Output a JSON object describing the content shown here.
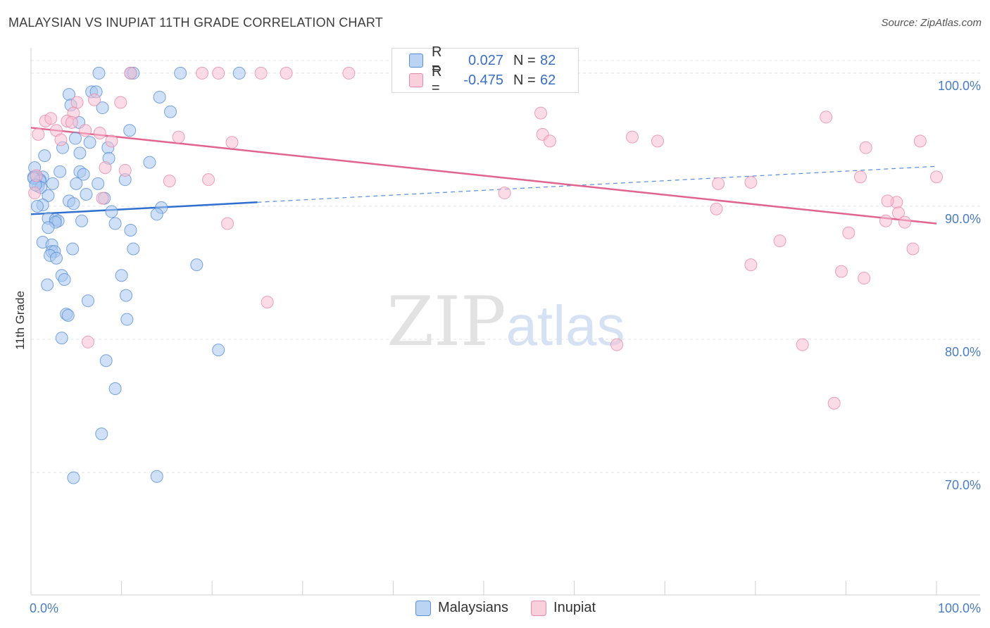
{
  "header": {
    "title": "MALAYSIAN VS INUPIAT 11TH GRADE CORRELATION CHART",
    "source": "Source: ZipAtlas.com"
  },
  "watermark": {
    "zip": "ZIP",
    "atlas": "atlas"
  },
  "legend": {
    "rows": [
      {
        "r_label": "R =",
        "r_value": "0.027",
        "n_label": "N =",
        "n_value": "82"
      },
      {
        "r_label": "R =",
        "r_value": "-0.475",
        "n_label": "N =",
        "n_value": "62"
      }
    ]
  },
  "bottom_legend": {
    "malaysians": "Malaysians",
    "inupiat": "Inupiat"
  },
  "colors": {
    "malaysian_fill": "#a9c8f0",
    "malaysian_stroke": "#5b8fd6",
    "malaysian_line": "#2f6fcf",
    "inupiat_fill": "#f7c0d1",
    "inupiat_stroke": "#e88aa9",
    "inupiat_line": "#e0648e",
    "tick_text": "#4a7cc2",
    "grid": "#e3e3e3"
  },
  "chart_data": {
    "type": "scatter",
    "title": "MALAYSIAN VS INUPIAT 11TH GRADE CORRELATION CHART",
    "xlabel": "",
    "ylabel": "11th Grade",
    "xlim": [
      0,
      100
    ],
    "ylim": [
      60.8,
      101.9
    ],
    "x_ticks": [
      0,
      10,
      20,
      30,
      40,
      50,
      60,
      70,
      80,
      90,
      100
    ],
    "x_tick_labels": {
      "0": "0.0%",
      "100": "100.0%"
    },
    "y_ticks": [
      70,
      80,
      90,
      100
    ],
    "y_tick_labels": [
      "70.0%",
      "80.0%",
      "90.0%",
      "100.0%"
    ],
    "grid": true,
    "legend_position": "top-center",
    "series": [
      {
        "name": "Malaysians",
        "r": 0.027,
        "n": 82,
        "trend": {
          "solid": [
            [
              0,
              89.4
            ],
            [
              25,
              90.3
            ]
          ],
          "dashed": [
            [
              25,
              90.3
            ],
            [
              100,
              93.0
            ]
          ]
        },
        "points": [
          [
            7.5,
            100
          ],
          [
            11,
            100
          ],
          [
            11.3,
            100
          ],
          [
            16.5,
            100
          ],
          [
            23,
            100
          ],
          [
            4.2,
            98.4
          ],
          [
            6.7,
            98.6
          ],
          [
            7.2,
            98.6
          ],
          [
            14.2,
            98.2
          ],
          [
            4.4,
            97.6
          ],
          [
            7.9,
            97.4
          ],
          [
            15.4,
            97.1
          ],
          [
            5.3,
            96.3
          ],
          [
            10.9,
            95.7
          ],
          [
            4.9,
            95.1
          ],
          [
            6.5,
            94.8
          ],
          [
            8.5,
            94.4
          ],
          [
            3.5,
            94.4
          ],
          [
            5.4,
            94.0
          ],
          [
            1.5,
            93.8
          ],
          [
            8.6,
            93.6
          ],
          [
            13.1,
            93.3
          ],
          [
            0.4,
            92.9
          ],
          [
            3.2,
            92.6
          ],
          [
            5.4,
            92.6
          ],
          [
            5.8,
            92.4
          ],
          [
            1.3,
            92.2
          ],
          [
            0.6,
            92.2
          ],
          [
            1.0,
            92.0
          ],
          [
            0.3,
            92.2
          ],
          [
            10.4,
            92.0
          ],
          [
            1.0,
            91.9
          ],
          [
            2.4,
            91.7
          ],
          [
            7.4,
            91.7
          ],
          [
            5.0,
            91.7
          ],
          [
            0.8,
            91.5
          ],
          [
            1.1,
            91.4
          ],
          [
            6.1,
            90.9
          ],
          [
            1.9,
            90.8
          ],
          [
            8.1,
            90.6
          ],
          [
            4.2,
            90.4
          ],
          [
            4.7,
            90.2
          ],
          [
            1.3,
            90.1
          ],
          [
            0.7,
            90.0
          ],
          [
            14.4,
            89.9
          ],
          [
            8.9,
            89.6
          ],
          [
            13.9,
            89.4
          ],
          [
            1.9,
            89.1
          ],
          [
            2.7,
            89.0
          ],
          [
            3.0,
            88.9
          ],
          [
            5.6,
            88.9
          ],
          [
            2.7,
            88.8
          ],
          [
            9.3,
            88.7
          ],
          [
            1.9,
            88.4
          ],
          [
            11.0,
            88.2
          ],
          [
            1.3,
            87.3
          ],
          [
            2.3,
            87.1
          ],
          [
            4.6,
            86.8
          ],
          [
            11.3,
            86.8
          ],
          [
            2.3,
            86.6
          ],
          [
            2.6,
            86.6
          ],
          [
            2.1,
            86.3
          ],
          [
            2.8,
            86.1
          ],
          [
            18.3,
            85.6
          ],
          [
            3.4,
            84.8
          ],
          [
            10.0,
            84.8
          ],
          [
            3.7,
            84.5
          ],
          [
            1.8,
            84.1
          ],
          [
            10.5,
            83.3
          ],
          [
            6.3,
            82.9
          ],
          [
            3.9,
            81.9
          ],
          [
            4.1,
            81.8
          ],
          [
            10.6,
            81.5
          ],
          [
            3.4,
            80.1
          ],
          [
            20.7,
            79.2
          ],
          [
            8.3,
            78.4
          ],
          [
            9.3,
            76.3
          ],
          [
            7.8,
            72.9
          ],
          [
            4.7,
            69.6
          ],
          [
            13.9,
            69.7
          ],
          [
            0.3,
            92.1
          ],
          [
            0.5,
            91.6
          ]
        ]
      },
      {
        "name": "Inupiat",
        "r": -0.475,
        "n": 62,
        "trend": {
          "solid": [
            [
              0,
              95.9
            ],
            [
              100,
              88.7
            ]
          ]
        },
        "points": [
          [
            11,
            100
          ],
          [
            18.9,
            100
          ],
          [
            20.7,
            100
          ],
          [
            25.4,
            100
          ],
          [
            28.2,
            100
          ],
          [
            35.1,
            100
          ],
          [
            46.8,
            100
          ],
          [
            5.1,
            97.8
          ],
          [
            7.0,
            98.0
          ],
          [
            9.9,
            97.8
          ],
          [
            4.7,
            97.0
          ],
          [
            56.3,
            97.0
          ],
          [
            1.6,
            96.4
          ],
          [
            2.2,
            96.6
          ],
          [
            4.0,
            96.4
          ],
          [
            4.5,
            96.3
          ],
          [
            6.0,
            95.7
          ],
          [
            7.6,
            95.5
          ],
          [
            2.8,
            95.7
          ],
          [
            0.8,
            95.4
          ],
          [
            56.5,
            95.4
          ],
          [
            16.3,
            95.2
          ],
          [
            8.9,
            94.9
          ],
          [
            3.3,
            95.0
          ],
          [
            22.2,
            94.8
          ],
          [
            57.3,
            94.9
          ],
          [
            66.4,
            95.2
          ],
          [
            69.2,
            94.9
          ],
          [
            87.8,
            96.7
          ],
          [
            92.2,
            94.4
          ],
          [
            98.2,
            94.9
          ],
          [
            8.2,
            92.9
          ],
          [
            10.4,
            92.7
          ],
          [
            15.3,
            91.9
          ],
          [
            19.6,
            92.0
          ],
          [
            75.9,
            91.7
          ],
          [
            79.5,
            91.8
          ],
          [
            91.6,
            92.2
          ],
          [
            100,
            92.2
          ],
          [
            52.3,
            91.0
          ],
          [
            95.6,
            90.3
          ],
          [
            94.6,
            90.4
          ],
          [
            7.9,
            90.6
          ],
          [
            75.7,
            89.8
          ],
          [
            21.7,
            88.7
          ],
          [
            95.8,
            89.5
          ],
          [
            94.4,
            88.9
          ],
          [
            96.5,
            88.8
          ],
          [
            90.3,
            88.0
          ],
          [
            82.7,
            87.4
          ],
          [
            97.4,
            86.8
          ],
          [
            79.5,
            85.6
          ],
          [
            89.5,
            85.1
          ],
          [
            92.0,
            84.6
          ],
          [
            26.1,
            82.8
          ],
          [
            6.3,
            79.8
          ],
          [
            64.7,
            79.6
          ],
          [
            85.2,
            79.6
          ],
          [
            88.7,
            75.2
          ],
          [
            0.4,
            91.0
          ],
          [
            0.6,
            92.3
          ],
          [
            50.2,
            100
          ]
        ]
      }
    ]
  }
}
